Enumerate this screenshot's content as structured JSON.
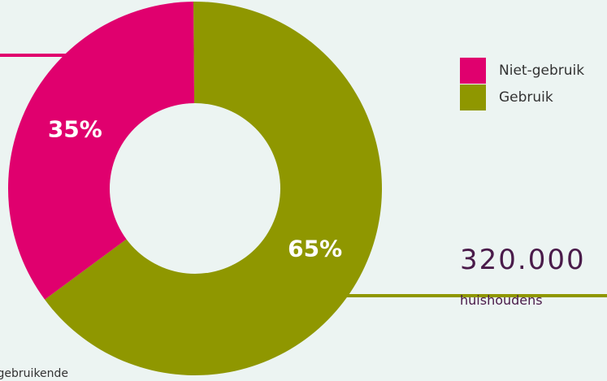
{
  "chart_data": {
    "type": "pie",
    "categories": [
      "Niet-gebruik",
      "Gebruik"
    ],
    "values": [
      35,
      65
    ],
    "value_labels": [
      "35%",
      "65%"
    ],
    "colors": [
      "#e0006e",
      "#8f9700"
    ],
    "donut": true,
    "legend": "top-right"
  },
  "legend": {
    "items": [
      {
        "label": "Niet-gebruik",
        "color": "#e0006e"
      },
      {
        "label": "Gebruik",
        "color": "#8f9700"
      }
    ]
  },
  "callout": {
    "number": "320.000",
    "unit": "huishoudens"
  },
  "footer_text": "t-gebruikende",
  "colors": {
    "background": "#ecf4f2",
    "niet_gebruik": "#e0006e",
    "gebruik": "#8f9700",
    "callout_text": "#4a1b4a"
  }
}
